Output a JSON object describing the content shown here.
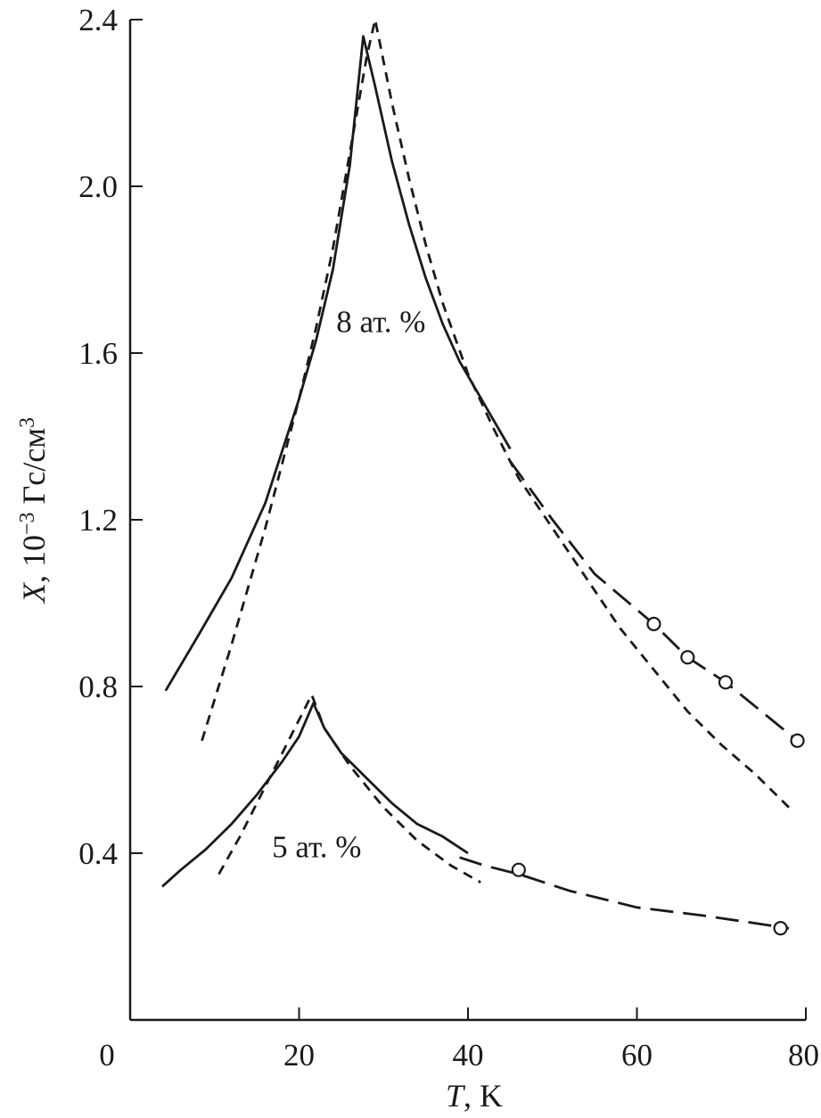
{
  "chart_data": {
    "type": "line",
    "title": "",
    "xlabel": {
      "var": "T",
      "rest": ", K"
    },
    "ylabel": {
      "var": "X",
      "rest": ", 10",
      "sup": "−3",
      "unit": " Гс/см",
      "unit_sup": "3"
    },
    "xlim": [
      0,
      80
    ],
    "ylim": [
      0,
      2.4
    ],
    "xticks": [
      0,
      20,
      40,
      60,
      80
    ],
    "yticks": [
      0.4,
      0.8,
      1.2,
      1.6,
      2.0,
      2.4
    ],
    "xtick_labels": [
      "0",
      "20",
      "40",
      "60",
      "80"
    ],
    "ytick_labels": [
      "0.4",
      "0.8",
      "1.2",
      "1.6",
      "2.0",
      "2.4"
    ],
    "grid": false,
    "annotations": [
      {
        "text": "8 ат. %",
        "x": 24.4,
        "y": 1.65
      },
      {
        "text": "5 ат. %",
        "x": 16.8,
        "y": 0.39
      }
    ],
    "series": [
      {
        "style": "solid",
        "color": "#1a1a1a",
        "points": [
          [
            4.2,
            0.79
          ],
          [
            8,
            0.92
          ],
          [
            12,
            1.06
          ],
          [
            16,
            1.24
          ],
          [
            20,
            1.49
          ],
          [
            22,
            1.63
          ],
          [
            24,
            1.8
          ],
          [
            26,
            2.05
          ],
          [
            27.6,
            2.36
          ],
          [
            29,
            2.24
          ],
          [
            31,
            2.06
          ],
          [
            33,
            1.91
          ],
          [
            35,
            1.78
          ],
          [
            37,
            1.67
          ],
          [
            39,
            1.58
          ],
          [
            41,
            1.51
          ],
          [
            43,
            1.44
          ],
          [
            45,
            1.37
          ]
        ]
      },
      {
        "style": "dash",
        "color": "#1a1a1a",
        "points": [
          [
            8.5,
            0.67
          ],
          [
            12,
            0.9
          ],
          [
            16,
            1.18
          ],
          [
            20,
            1.49
          ],
          [
            22,
            1.66
          ],
          [
            24,
            1.85
          ],
          [
            26,
            2.08
          ],
          [
            28,
            2.31
          ],
          [
            29,
            2.4
          ],
          [
            31,
            2.2
          ],
          [
            33,
            2.02
          ],
          [
            35,
            1.86
          ],
          [
            37,
            1.72
          ],
          [
            40,
            1.55
          ],
          [
            43,
            1.42
          ],
          [
            46,
            1.3
          ],
          [
            50,
            1.18
          ],
          [
            54,
            1.06
          ],
          [
            58,
            0.94
          ],
          [
            62,
            0.84
          ],
          [
            66,
            0.74
          ],
          [
            70,
            0.66
          ],
          [
            74,
            0.59
          ],
          [
            78,
            0.51
          ]
        ]
      },
      {
        "style": "longdash",
        "color": "#1a1a1a",
        "points": [
          [
            45,
            1.34
          ],
          [
            50,
            1.2
          ],
          [
            55,
            1.07
          ],
          [
            62,
            0.95
          ],
          [
            66,
            0.87
          ],
          [
            70.5,
            0.81
          ],
          [
            79,
            0.67
          ]
        ]
      },
      {
        "style": "solid",
        "color": "#1a1a1a",
        "points": [
          [
            3.8,
            0.32
          ],
          [
            6,
            0.36
          ],
          [
            9,
            0.41
          ],
          [
            12,
            0.47
          ],
          [
            15,
            0.54
          ],
          [
            18,
            0.62
          ],
          [
            20,
            0.68
          ],
          [
            21.7,
            0.76
          ],
          [
            23,
            0.7
          ],
          [
            25,
            0.64
          ],
          [
            28,
            0.58
          ],
          [
            31,
            0.52
          ],
          [
            34,
            0.47
          ],
          [
            37,
            0.44
          ],
          [
            40,
            0.4
          ]
        ]
      },
      {
        "style": "dash",
        "color": "#1a1a1a",
        "points": [
          [
            10.5,
            0.35
          ],
          [
            13,
            0.44
          ],
          [
            16,
            0.56
          ],
          [
            18,
            0.64
          ],
          [
            20,
            0.72
          ],
          [
            21.5,
            0.78
          ],
          [
            23,
            0.7
          ],
          [
            26,
            0.61
          ],
          [
            30,
            0.51
          ],
          [
            34,
            0.43
          ],
          [
            38,
            0.37
          ],
          [
            41.5,
            0.33
          ]
        ]
      },
      {
        "style": "longdash",
        "color": "#1a1a1a",
        "points": [
          [
            39,
            0.39
          ],
          [
            42,
            0.37
          ],
          [
            46,
            0.35
          ],
          [
            52,
            0.31
          ],
          [
            60,
            0.27
          ],
          [
            68,
            0.25
          ],
          [
            78,
            0.22
          ]
        ]
      }
    ],
    "markers": [
      {
        "shape": "open-circle",
        "points": [
          [
            62,
            0.95
          ],
          [
            66,
            0.87
          ],
          [
            70.5,
            0.81
          ],
          [
            79,
            0.67
          ]
        ]
      },
      {
        "shape": "open-circle",
        "points": [
          [
            46,
            0.36
          ],
          [
            77,
            0.22
          ]
        ]
      }
    ]
  }
}
